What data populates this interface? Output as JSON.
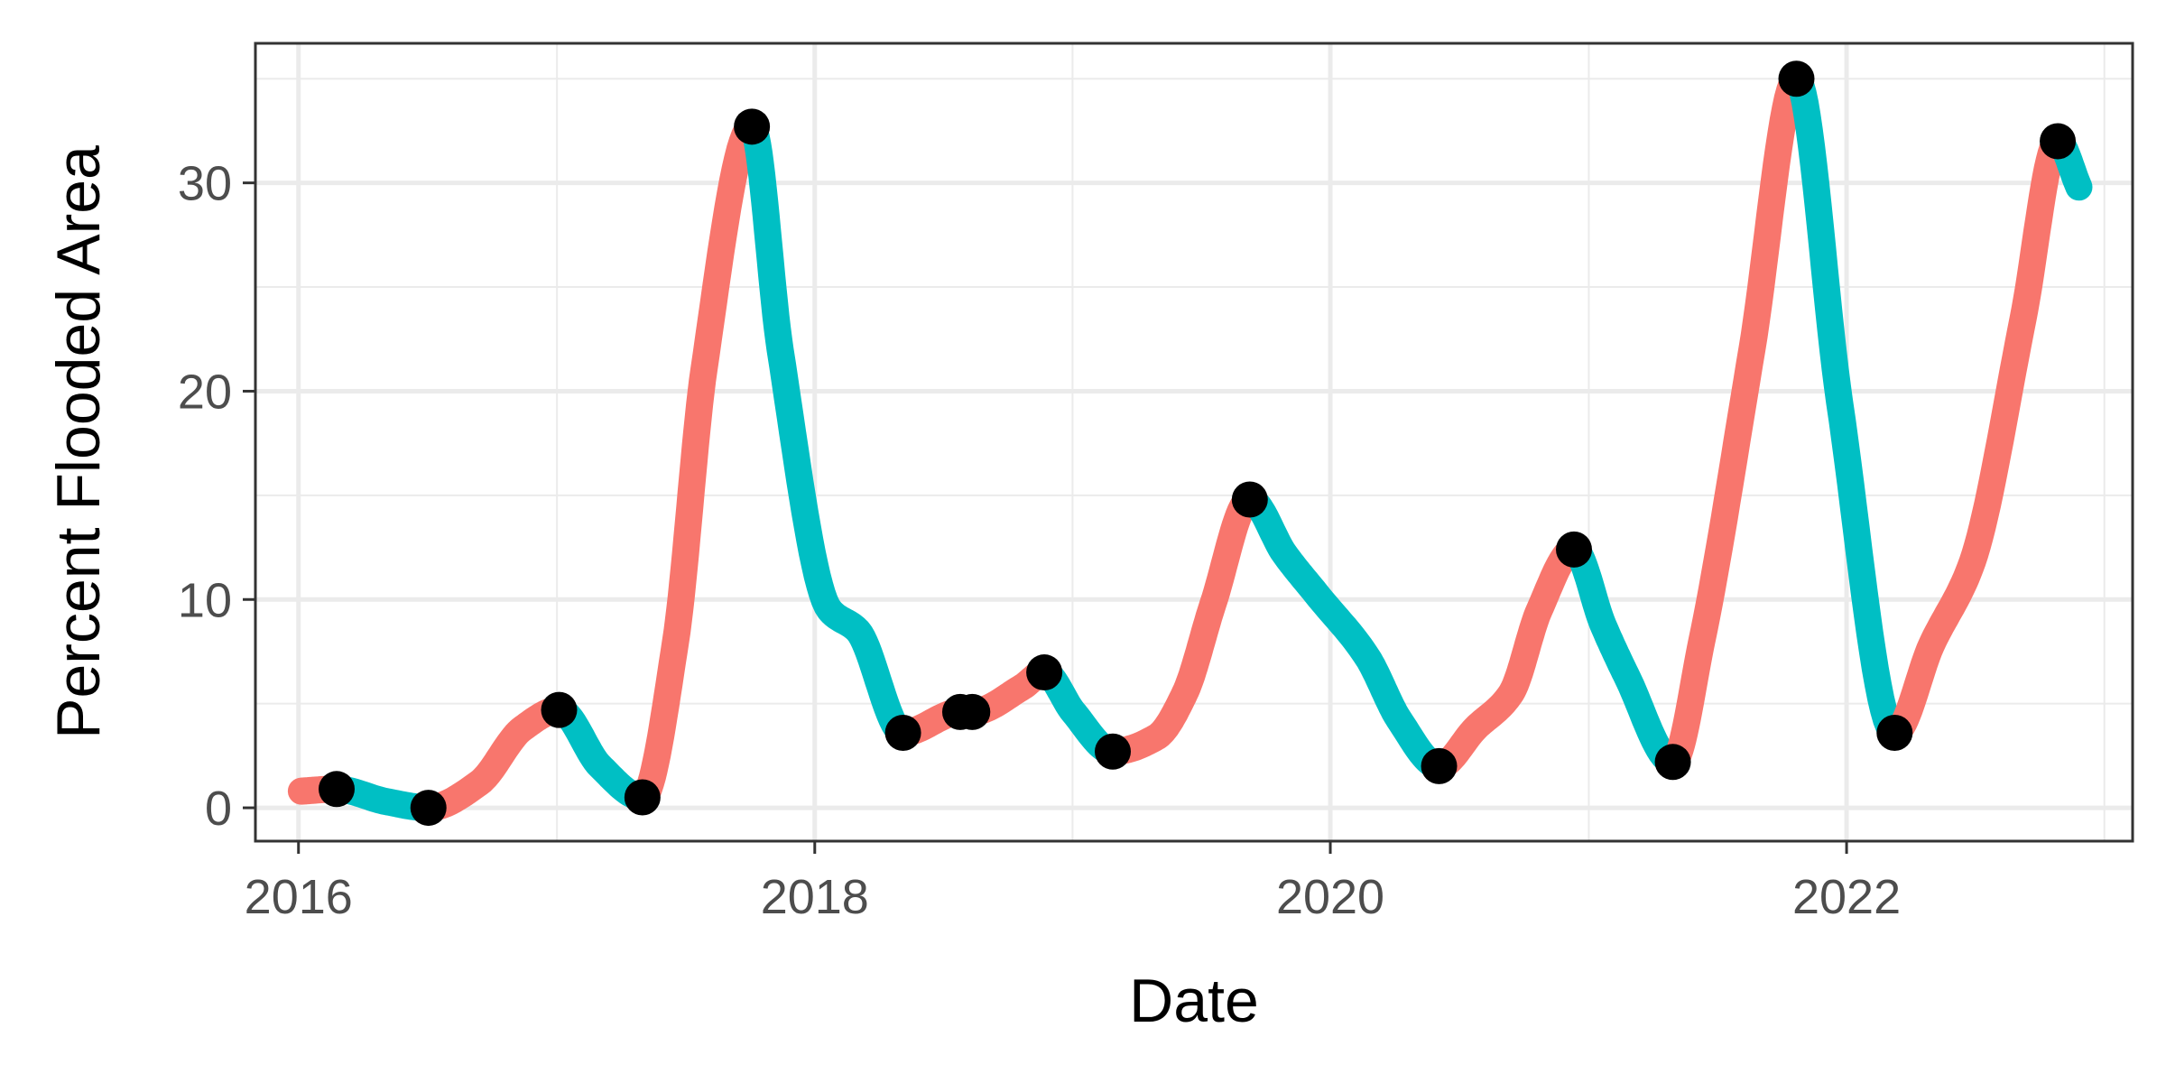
{
  "chart_data": {
    "type": "line",
    "title": "",
    "xlabel": "Date",
    "ylabel": "Percent Flooded Area",
    "x_ticks": [
      "2016",
      "2018",
      "2020",
      "2022"
    ],
    "y_ticks": [
      "0",
      "10",
      "20",
      "30"
    ],
    "xlim": [
      "2015-11-01",
      "2023-02-10"
    ],
    "ylim": [
      -1.6,
      36.7
    ],
    "grid": true,
    "legend": "none",
    "colors": {
      "rising": "#F8766D",
      "falling": "#00BFC4",
      "points": "#000000",
      "grid": "#EBEBEB",
      "panel_border": "#333333"
    },
    "observations": {
      "x": [
        "2016-02-24",
        "2016-07-03",
        "2017-01-04",
        "2017-05-02",
        "2017-10-04",
        "2018-05-06",
        "2018-07-26",
        "2018-08-12",
        "2018-11-22",
        "2019-02-27",
        "2019-09-09",
        "2020-06-03",
        "2020-12-11",
        "2021-04-30",
        "2021-10-22",
        "2022-03-10",
        "2022-10-27"
      ],
      "y": [
        0.9,
        0.0,
        4.7,
        0.5,
        32.7,
        3.6,
        4.6,
        4.6,
        6.5,
        2.7,
        14.8,
        2.0,
        12.4,
        2.2,
        35.0,
        3.6,
        32.0
      ]
    },
    "smooth_curve": {
      "x": [
        "2016-01-05",
        "2016-02-24",
        "2016-05-04",
        "2016-07-03",
        "2016-09-13",
        "2016-11-13",
        "2017-01-04",
        "2017-03-03",
        "2017-05-02",
        "2017-06-18",
        "2017-07-28",
        "2017-10-04",
        "2017-11-13",
        "2018-01-22",
        "2018-03-03",
        "2018-05-06",
        "2018-07-26",
        "2018-08-12",
        "2018-10-22",
        "2018-11-22",
        "2019-01-02",
        "2019-02-27",
        "2019-04-30",
        "2019-06-09",
        "2019-07-19",
        "2019-09-09",
        "2019-10-28",
        "2019-12-14",
        "2020-02-23",
        "2020-04-08",
        "2020-06-03",
        "2020-07-24",
        "2020-09-13",
        "2020-10-23",
        "2020-12-11",
        "2021-01-21",
        "2021-02-24",
        "2021-04-30",
        "2021-06-10",
        "2021-08-20",
        "2021-10-22",
        "2021-12-22",
        "2022-03-10",
        "2022-05-01",
        "2022-06-28",
        "2022-09-08",
        "2022-10-27",
        "2022-11-26"
      ],
      "y": [
        0.8,
        0.9,
        0.3,
        0.0,
        1.2,
        3.8,
        4.7,
        2.0,
        0.5,
        8.0,
        21.0,
        32.7,
        22.0,
        9.5,
        8.5,
        3.6,
        4.6,
        4.6,
        5.8,
        6.5,
        4.6,
        2.7,
        3.4,
        5.5,
        9.8,
        14.8,
        12.2,
        10.2,
        7.2,
        4.2,
        2.0,
        3.8,
        5.5,
        9.5,
        12.4,
        8.8,
        6.3,
        2.2,
        8.0,
        22.0,
        35.0,
        19.5,
        3.6,
        7.8,
        11.8,
        23.5,
        32.0,
        29.8
      ]
    }
  }
}
